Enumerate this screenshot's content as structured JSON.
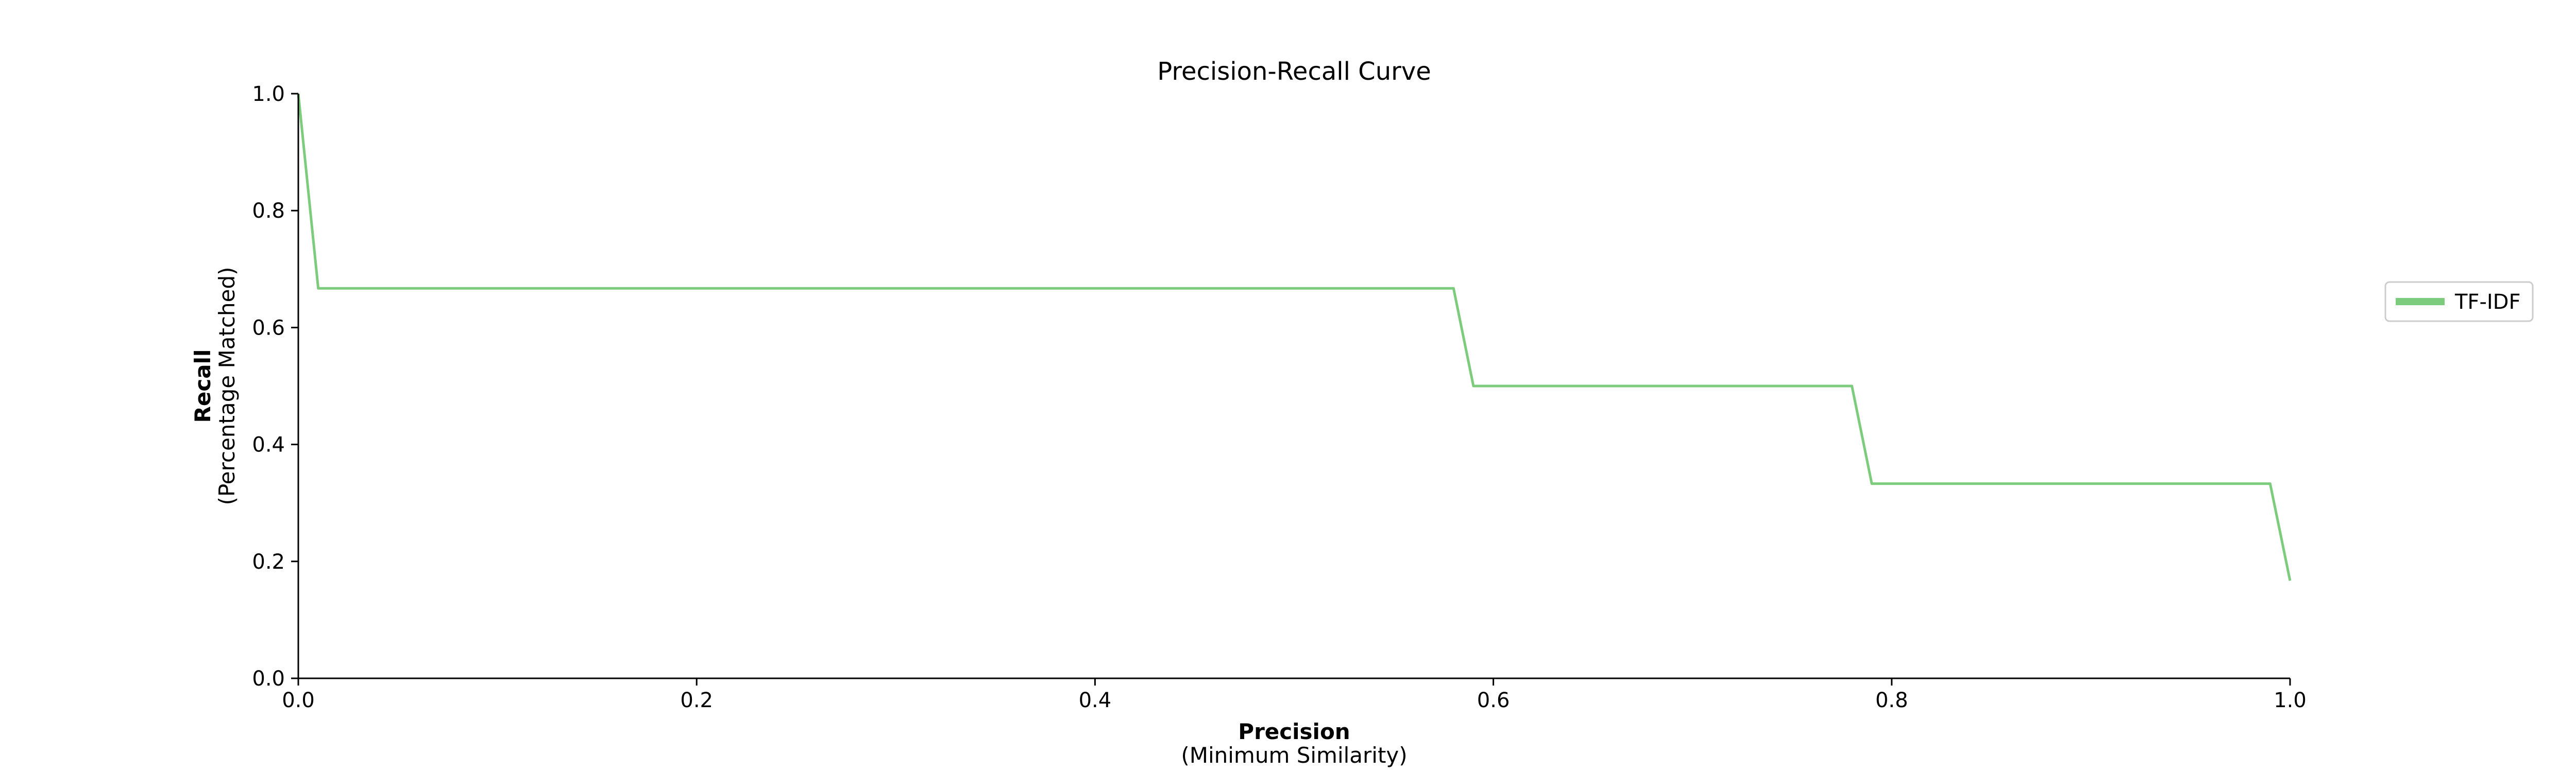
{
  "chart_data": {
    "type": "line",
    "title": "Precision-Recall Curve",
    "xlabel": "Precision",
    "xlabel_sub": "(Minimum Similarity)",
    "ylabel": "Recall",
    "ylabel_sub": "(Percentage Matched)",
    "xlim": [
      0,
      1
    ],
    "ylim": [
      0,
      1
    ],
    "xticks": [
      0.0,
      0.2,
      0.4,
      0.6,
      0.8,
      1.0
    ],
    "xtick_labels": [
      "0.0",
      "0.2",
      "0.4",
      "0.6",
      "0.8",
      "1.0"
    ],
    "yticks": [
      0.0,
      0.2,
      0.4,
      0.6,
      0.8,
      1.0
    ],
    "ytick_labels": [
      "0.0",
      "0.2",
      "0.4",
      "0.6",
      "0.8",
      "1.0"
    ],
    "grid": false,
    "legend_position": "right",
    "series": [
      {
        "name": "TF-IDF",
        "color": "#7dcb7d",
        "x": [
          0.0,
          0.01,
          0.58,
          0.59,
          0.78,
          0.79,
          0.99,
          1.0
        ],
        "y": [
          1.0,
          0.667,
          0.667,
          0.5,
          0.5,
          0.333,
          0.333,
          0.167
        ]
      }
    ]
  }
}
